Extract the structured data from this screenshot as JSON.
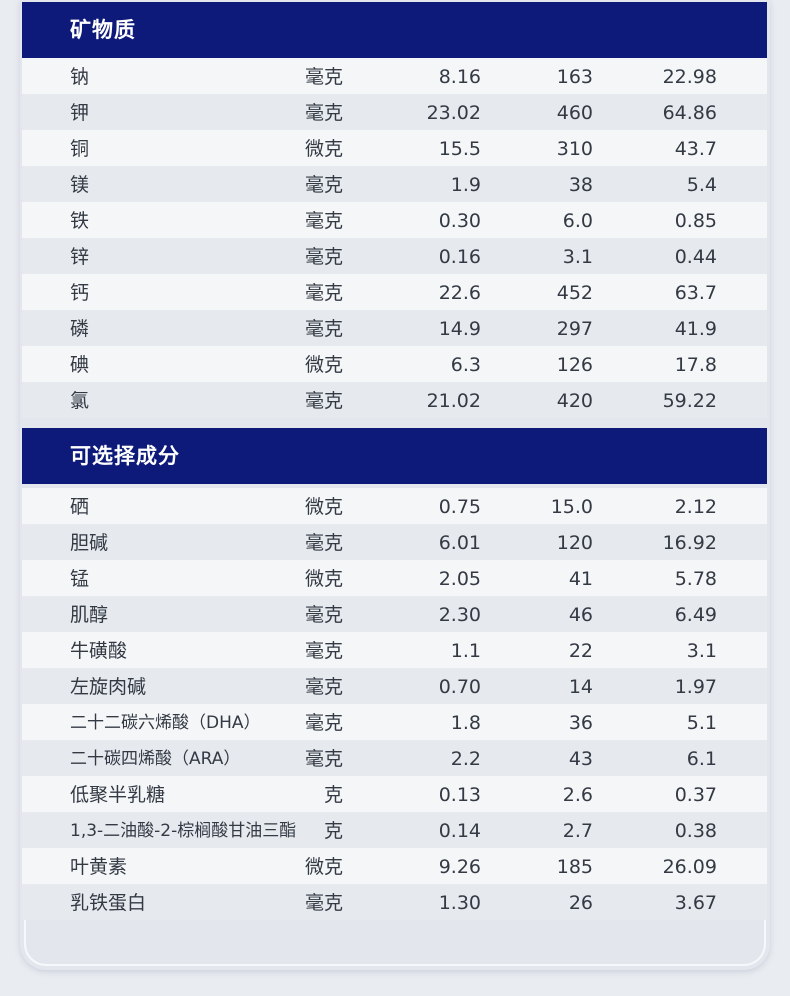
{
  "sections": [
    {
      "title": "矿物质",
      "rows": [
        {
          "name": "钠",
          "unit": "毫克",
          "v1": "8.16",
          "v2": "163",
          "v3": "22.98"
        },
        {
          "name": "钾",
          "unit": "毫克",
          "v1": "23.02",
          "v2": "460",
          "v3": "64.86"
        },
        {
          "name": "铜",
          "unit": "微克",
          "v1": "15.5",
          "v2": "310",
          "v3": "43.7"
        },
        {
          "name": "镁",
          "unit": "毫克",
          "v1": "1.9",
          "v2": "38",
          "v3": "5.4"
        },
        {
          "name": "铁",
          "unit": "毫克",
          "v1": "0.30",
          "v2": "6.0",
          "v3": "0.85"
        },
        {
          "name": "锌",
          "unit": "毫克",
          "v1": "0.16",
          "v2": "3.1",
          "v3": "0.44"
        },
        {
          "name": "钙",
          "unit": "毫克",
          "v1": "22.6",
          "v2": "452",
          "v3": "63.7"
        },
        {
          "name": "磷",
          "unit": "毫克",
          "v1": "14.9",
          "v2": "297",
          "v3": "41.9"
        },
        {
          "name": "碘",
          "unit": "微克",
          "v1": "6.3",
          "v2": "126",
          "v3": "17.8"
        },
        {
          "name": "氯",
          "unit": "毫克",
          "v1": "21.02",
          "v2": "420",
          "v3": "59.22"
        }
      ]
    },
    {
      "title": "可选择成分",
      "rows": [
        {
          "name": "硒",
          "unit": "微克",
          "v1": "0.75",
          "v2": "15.0",
          "v3": "2.12"
        },
        {
          "name": "胆碱",
          "unit": "毫克",
          "v1": "6.01",
          "v2": "120",
          "v3": "16.92"
        },
        {
          "name": "锰",
          "unit": "微克",
          "v1": "2.05",
          "v2": "41",
          "v3": "5.78"
        },
        {
          "name": "肌醇",
          "unit": "毫克",
          "v1": "2.30",
          "v2": "46",
          "v3": "6.49"
        },
        {
          "name": "牛磺酸",
          "unit": "毫克",
          "v1": "1.1",
          "v2": "22",
          "v3": "3.1"
        },
        {
          "name": "左旋肉碱",
          "unit": "毫克",
          "v1": "0.70",
          "v2": "14",
          "v3": "1.97"
        },
        {
          "name": "二十二碳六烯酸（DHA）",
          "unit": "毫克",
          "v1": "1.8",
          "v2": "36",
          "v3": "5.1"
        },
        {
          "name": "二十碳四烯酸（ARA）",
          "unit": "毫克",
          "v1": "2.2",
          "v2": "43",
          "v3": "6.1"
        },
        {
          "name": "低聚半乳糖",
          "unit": "克",
          "v1": "0.13",
          "v2": "2.6",
          "v3": "0.37"
        },
        {
          "name": "1,3-二油酸-2-棕榈酸甘油三酯",
          "unit": "克",
          "v1": "0.14",
          "v2": "2.7",
          "v3": "0.38"
        },
        {
          "name": "叶黄素",
          "unit": "微克",
          "v1": "9.26",
          "v2": "185",
          "v3": "26.09"
        },
        {
          "name": "乳铁蛋白",
          "unit": "毫克",
          "v1": "1.30",
          "v2": "26",
          "v3": "3.67"
        }
      ]
    }
  ],
  "colors": {
    "header_bg": "#0d1a7a",
    "row_light": "#f5f6f8",
    "row_dark": "#e6e9ee",
    "text": "#333a44"
  }
}
